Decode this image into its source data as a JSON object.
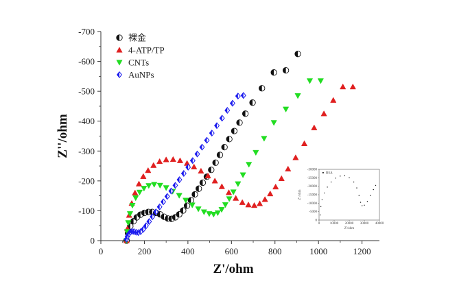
{
  "chart_data": [
    {
      "type": "scatter",
      "xlabel": "Z'/ohm",
      "ylabel": "Z''/ohm",
      "xlim": [
        0,
        1280
      ],
      "ylim": [
        0,
        -700
      ],
      "xticks": [
        0,
        200,
        400,
        600,
        800,
        1000,
        1200
      ],
      "yticks": [
        0,
        -100,
        -200,
        -300,
        -400,
        -500,
        -600,
        -700
      ],
      "x_tick_labels": [
        "0",
        "200",
        "400",
        "600",
        "800",
        "1000",
        "1200"
      ],
      "y_tick_labels": [
        "0",
        "-100",
        "-200",
        "-300",
        "-400",
        "-500",
        "-600",
        "-700"
      ],
      "legend_position": "top-left",
      "series": [
        {
          "name": "裸金",
          "color": "#111111",
          "marker": "circle-half",
          "points": [
            [
              118,
              0
            ],
            [
              125,
              -25
            ],
            [
              135,
              -48
            ],
            [
              150,
              -65
            ],
            [
              165,
              -78
            ],
            [
              182,
              -87
            ],
            [
              200,
              -93
            ],
            [
              218,
              -96
            ],
            [
              236,
              -96
            ],
            [
              254,
              -93
            ],
            [
              272,
              -88
            ],
            [
              290,
              -80
            ],
            [
              308,
              -74
            ],
            [
              325,
              -73
            ],
            [
              342,
              -78
            ],
            [
              360,
              -88
            ],
            [
              378,
              -101
            ],
            [
              396,
              -117
            ],
            [
              414,
              -135
            ],
            [
              432,
              -155
            ],
            [
              450,
              -174
            ],
            [
              468,
              -194
            ],
            [
              487,
              -214
            ],
            [
              507,
              -237
            ],
            [
              527,
              -261
            ],
            [
              547,
              -287
            ],
            [
              568,
              -313
            ],
            [
              590,
              -340
            ],
            [
              613,
              -367
            ],
            [
              637,
              -395
            ],
            [
              664,
              -425
            ],
            [
              697,
              -462
            ],
            [
              740,
              -510
            ],
            [
              795,
              -563
            ],
            [
              850,
              -570
            ],
            [
              905,
              -625
            ]
          ]
        },
        {
          "name": "4-ATP/TP",
          "color": "#e02020",
          "marker": "triangle-up",
          "points": [
            [
              118,
              0
            ],
            [
              122,
              -40
            ],
            [
              130,
              -85
            ],
            [
              142,
              -125
            ],
            [
              157,
              -160
            ],
            [
              175,
              -190
            ],
            [
              195,
              -215
            ],
            [
              217,
              -235
            ],
            [
              242,
              -252
            ],
            [
              270,
              -265
            ],
            [
              300,
              -271
            ],
            [
              332,
              -272
            ],
            [
              364,
              -268
            ],
            [
              396,
              -259
            ],
            [
              428,
              -247
            ],
            [
              460,
              -233
            ],
            [
              492,
              -217
            ],
            [
              524,
              -200
            ],
            [
              556,
              -181
            ],
            [
              588,
              -161
            ],
            [
              620,
              -142
            ],
            [
              650,
              -128
            ],
            [
              678,
              -120
            ],
            [
              705,
              -118
            ],
            [
              730,
              -124
            ],
            [
              754,
              -138
            ],
            [
              778,
              -157
            ],
            [
              803,
              -180
            ],
            [
              830,
              -208
            ],
            [
              860,
              -240
            ],
            [
              895,
              -278
            ],
            [
              935,
              -325
            ],
            [
              980,
              -378
            ],
            [
              1025,
              -425
            ],
            [
              1068,
              -470
            ],
            [
              1112,
              -515
            ],
            [
              1158,
              -515
            ]
          ]
        },
        {
          "name": "CNTs",
          "color": "#22dd22",
          "marker": "triangle-down",
          "points": [
            [
              118,
              0
            ],
            [
              121,
              -30
            ],
            [
              126,
              -60
            ],
            [
              134,
              -90
            ],
            [
              145,
              -118
            ],
            [
              160,
              -143
            ],
            [
              178,
              -162
            ],
            [
              198,
              -175
            ],
            [
              220,
              -184
            ],
            [
              245,
              -188
            ],
            [
              272,
              -185
            ],
            [
              300,
              -177
            ],
            [
              330,
              -165
            ],
            [
              360,
              -151
            ],
            [
              390,
              -135
            ],
            [
              420,
              -119
            ],
            [
              448,
              -106
            ],
            [
              474,
              -96
            ],
            [
              498,
              -90
            ],
            [
              518,
              -88
            ],
            [
              537,
              -93
            ],
            [
              555,
              -104
            ],
            [
              572,
              -120
            ],
            [
              590,
              -140
            ],
            [
              609,
              -163
            ],
            [
              630,
              -190
            ],
            [
              653,
              -220
            ],
            [
              680,
              -255
            ],
            [
              712,
              -295
            ],
            [
              750,
              -342
            ],
            [
              795,
              -395
            ],
            [
              850,
              -440
            ],
            [
              905,
              -485
            ],
            [
              960,
              -535
            ],
            [
              1010,
              -535
            ]
          ]
        },
        {
          "name": "AuNPs",
          "color": "#1a1aee",
          "marker": "diamond",
          "points": [
            [
              118,
              -5
            ],
            [
              122,
              -14
            ],
            [
              128,
              -22
            ],
            [
              135,
              -28
            ],
            [
              143,
              -31
            ],
            [
              152,
              -30
            ],
            [
              162,
              -28
            ],
            [
              172,
              -27
            ],
            [
              183,
              -30
            ],
            [
              195,
              -38
            ],
            [
              208,
              -50
            ],
            [
              222,
              -64
            ],
            [
              237,
              -80
            ],
            [
              253,
              -96
            ],
            [
              270,
              -113
            ],
            [
              287,
              -130
            ],
            [
              305,
              -148
            ],
            [
              323,
              -166
            ],
            [
              342,
              -185
            ],
            [
              361,
              -204
            ],
            [
              381,
              -225
            ],
            [
              401,
              -246
            ],
            [
              422,
              -268
            ],
            [
              443,
              -290
            ],
            [
              465,
              -313
            ],
            [
              487,
              -336
            ],
            [
              510,
              -360
            ],
            [
              533,
              -385
            ],
            [
              557,
              -410
            ],
            [
              581,
              -436
            ],
            [
              605,
              -460
            ],
            [
              630,
              -484
            ],
            [
              655,
              -486
            ]
          ]
        }
      ]
    },
    {
      "type": "scatter",
      "title": "",
      "legend_label": "BSA",
      "xlabel": "Z'/ohm",
      "ylabel": "Z''/ohm",
      "xlim": [
        0,
        40000
      ],
      "ylim": [
        0,
        -30000
      ],
      "xticks": [
        0,
        10000,
        20000,
        30000,
        40000
      ],
      "yticks": [
        0,
        -5000,
        -10000,
        -15000,
        -20000,
        -25000,
        -30000
      ],
      "x_tick_labels": [
        "0",
        "10000",
        "20000",
        "30000",
        "40000"
      ],
      "y_tick_labels": [
        "0",
        "-5000",
        "-10000",
        "-15000",
        "-20000",
        "-25000",
        "-30000"
      ],
      "series": [
        {
          "name": "BSA",
          "color": "#111111",
          "points": [
            [
              800,
              -3000
            ],
            [
              1200,
              -8000
            ],
            [
              2000,
              -12000
            ],
            [
              3500,
              -16000
            ],
            [
              5500,
              -19500
            ],
            [
              8000,
              -22500
            ],
            [
              11000,
              -24800
            ],
            [
              14000,
              -26000
            ],
            [
              17000,
              -26200
            ],
            [
              20000,
              -25000
            ],
            [
              23000,
              -22500
            ],
            [
              25000,
              -19000
            ],
            [
              26500,
              -14500
            ],
            [
              27500,
              -10500
            ],
            [
              28500,
              -8500
            ],
            [
              30000,
              -8800
            ],
            [
              32000,
              -11000
            ],
            [
              34000,
              -14500
            ],
            [
              36000,
              -18000
            ],
            [
              37500,
              -20500
            ]
          ]
        }
      ]
    }
  ]
}
